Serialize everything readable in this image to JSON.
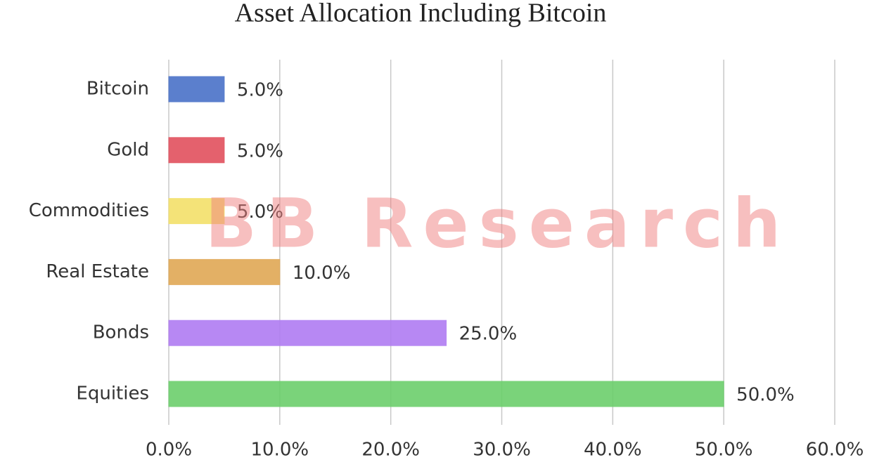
{
  "chart_data": {
    "type": "bar",
    "orientation": "horizontal",
    "title": "Asset Allocation Including Bitcoin",
    "watermark": "BB Research",
    "categories": [
      "Bitcoin",
      "Gold",
      "Commodities",
      "Real Estate",
      "Bonds",
      "Equities"
    ],
    "values": [
      5,
      5,
      5,
      10,
      25,
      50
    ],
    "value_labels": [
      "5.0%",
      "5.0%",
      "5.0%",
      "10.0%",
      "25.0%",
      "50.0%"
    ],
    "colors": [
      "#4a72c8",
      "#e2505e",
      "#f3e06a",
      "#e0a855",
      "#b07cf2",
      "#6ccf6c"
    ],
    "xlim": [
      0,
      60
    ],
    "xticks": [
      {
        "value": 0,
        "label": "0.0%"
      },
      {
        "value": 10,
        "label": "10.0%"
      },
      {
        "value": 20,
        "label": "20.0%"
      },
      {
        "value": 30,
        "label": "30.0%"
      },
      {
        "value": 40,
        "label": "40.0%"
      },
      {
        "value": 50,
        "label": "50.0%"
      },
      {
        "value": 60,
        "label": "60.0%"
      }
    ],
    "grid": true
  }
}
